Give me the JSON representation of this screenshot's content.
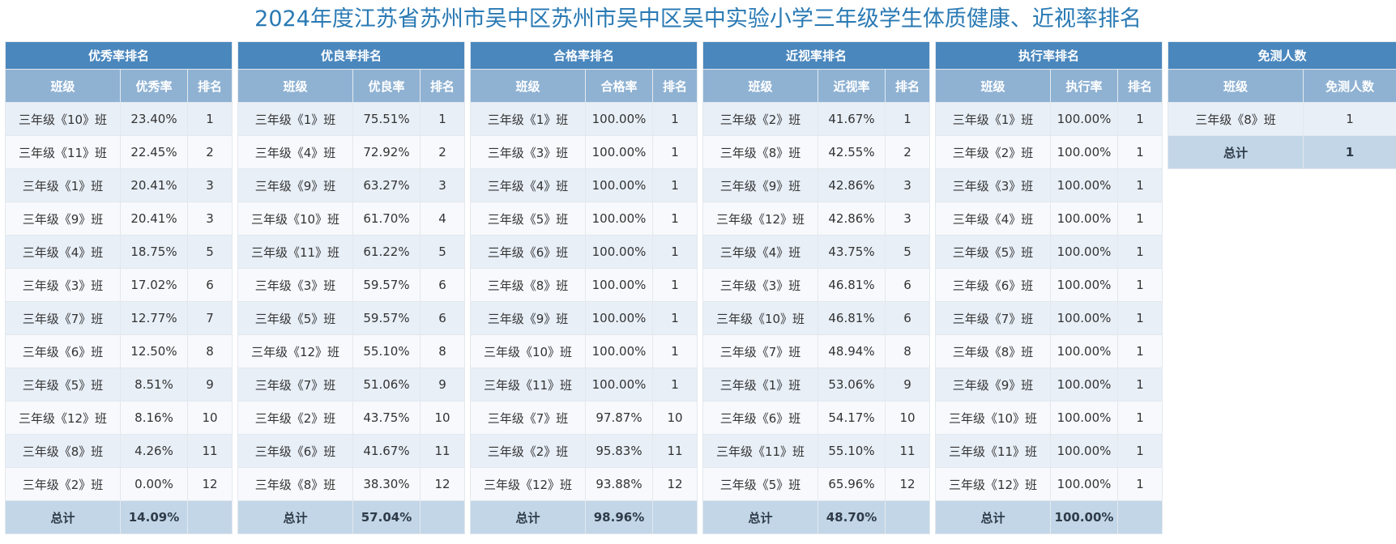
{
  "page_title": "2024年度江苏省苏州市吴中区苏州市吴中区吴中实验小学三年级学生体质健康、近视率排名",
  "rank_tables": [
    {
      "key": "excellent",
      "title": "优秀率排名",
      "columns": [
        "班级",
        "优秀率",
        "排名"
      ],
      "rows": [
        [
          "三年级《10》班",
          "23.40%",
          "1"
        ],
        [
          "三年级《11》班",
          "22.45%",
          "2"
        ],
        [
          "三年级《1》班",
          "20.41%",
          "3"
        ],
        [
          "三年级《9》班",
          "20.41%",
          "3"
        ],
        [
          "三年级《4》班",
          "18.75%",
          "5"
        ],
        [
          "三年级《3》班",
          "17.02%",
          "6"
        ],
        [
          "三年级《7》班",
          "12.77%",
          "7"
        ],
        [
          "三年级《6》班",
          "12.50%",
          "8"
        ],
        [
          "三年级《5》班",
          "8.51%",
          "9"
        ],
        [
          "三年级《12》班",
          "8.16%",
          "10"
        ],
        [
          "三年级《8》班",
          "4.26%",
          "11"
        ],
        [
          "三年级《2》班",
          "0.00%",
          "12"
        ]
      ],
      "total": [
        "总计",
        "14.09%",
        ""
      ]
    },
    {
      "key": "good",
      "title": "优良率排名",
      "columns": [
        "班级",
        "优良率",
        "排名"
      ],
      "rows": [
        [
          "三年级《1》班",
          "75.51%",
          "1"
        ],
        [
          "三年级《4》班",
          "72.92%",
          "2"
        ],
        [
          "三年级《9》班",
          "63.27%",
          "3"
        ],
        [
          "三年级《10》班",
          "61.70%",
          "4"
        ],
        [
          "三年级《11》班",
          "61.22%",
          "5"
        ],
        [
          "三年级《3》班",
          "59.57%",
          "6"
        ],
        [
          "三年级《5》班",
          "59.57%",
          "6"
        ],
        [
          "三年级《12》班",
          "55.10%",
          "8"
        ],
        [
          "三年级《7》班",
          "51.06%",
          "9"
        ],
        [
          "三年级《2》班",
          "43.75%",
          "10"
        ],
        [
          "三年级《6》班",
          "41.67%",
          "11"
        ],
        [
          "三年级《8》班",
          "38.30%",
          "12"
        ]
      ],
      "total": [
        "总计",
        "57.04%",
        ""
      ]
    },
    {
      "key": "pass",
      "title": "合格率排名",
      "columns": [
        "班级",
        "合格率",
        "排名"
      ],
      "rows": [
        [
          "三年级《1》班",
          "100.00%",
          "1"
        ],
        [
          "三年级《3》班",
          "100.00%",
          "1"
        ],
        [
          "三年级《4》班",
          "100.00%",
          "1"
        ],
        [
          "三年级《5》班",
          "100.00%",
          "1"
        ],
        [
          "三年级《6》班",
          "100.00%",
          "1"
        ],
        [
          "三年级《8》班",
          "100.00%",
          "1"
        ],
        [
          "三年级《9》班",
          "100.00%",
          "1"
        ],
        [
          "三年级《10》班",
          "100.00%",
          "1"
        ],
        [
          "三年级《11》班",
          "100.00%",
          "1"
        ],
        [
          "三年级《7》班",
          "97.87%",
          "10"
        ],
        [
          "三年级《2》班",
          "95.83%",
          "11"
        ],
        [
          "三年级《12》班",
          "93.88%",
          "12"
        ]
      ],
      "total": [
        "总计",
        "98.96%",
        ""
      ]
    },
    {
      "key": "myopia",
      "title": "近视率排名",
      "columns": [
        "班级",
        "近视率",
        "排名"
      ],
      "rows": [
        [
          "三年级《2》班",
          "41.67%",
          "1"
        ],
        [
          "三年级《8》班",
          "42.55%",
          "2"
        ],
        [
          "三年级《9》班",
          "42.86%",
          "3"
        ],
        [
          "三年级《12》班",
          "42.86%",
          "3"
        ],
        [
          "三年级《4》班",
          "43.75%",
          "5"
        ],
        [
          "三年级《3》班",
          "46.81%",
          "6"
        ],
        [
          "三年级《10》班",
          "46.81%",
          "6"
        ],
        [
          "三年级《7》班",
          "48.94%",
          "8"
        ],
        [
          "三年级《1》班",
          "53.06%",
          "9"
        ],
        [
          "三年级《6》班",
          "54.17%",
          "10"
        ],
        [
          "三年级《11》班",
          "55.10%",
          "11"
        ],
        [
          "三年级《5》班",
          "65.96%",
          "12"
        ]
      ],
      "total": [
        "总计",
        "48.70%",
        ""
      ]
    },
    {
      "key": "execution",
      "title": "执行率排名",
      "columns": [
        "班级",
        "执行率",
        "排名"
      ],
      "rows": [
        [
          "三年级《1》班",
          "100.00%",
          "1"
        ],
        [
          "三年级《2》班",
          "100.00%",
          "1"
        ],
        [
          "三年级《3》班",
          "100.00%",
          "1"
        ],
        [
          "三年级《4》班",
          "100.00%",
          "1"
        ],
        [
          "三年级《5》班",
          "100.00%",
          "1"
        ],
        [
          "三年级《6》班",
          "100.00%",
          "1"
        ],
        [
          "三年级《7》班",
          "100.00%",
          "1"
        ],
        [
          "三年级《8》班",
          "100.00%",
          "1"
        ],
        [
          "三年级《9》班",
          "100.00%",
          "1"
        ],
        [
          "三年级《10》班",
          "100.00%",
          "1"
        ],
        [
          "三年级《11》班",
          "100.00%",
          "1"
        ],
        [
          "三年级《12》班",
          "100.00%",
          "1"
        ]
      ],
      "total": [
        "总计",
        "100.00%",
        ""
      ]
    }
  ],
  "exempt_table": {
    "title": "免测人数",
    "columns": [
      "班级",
      "免测人数"
    ],
    "rows": [
      [
        "三年级《8》班",
        "1"
      ]
    ],
    "total": [
      "总计",
      "1"
    ]
  }
}
